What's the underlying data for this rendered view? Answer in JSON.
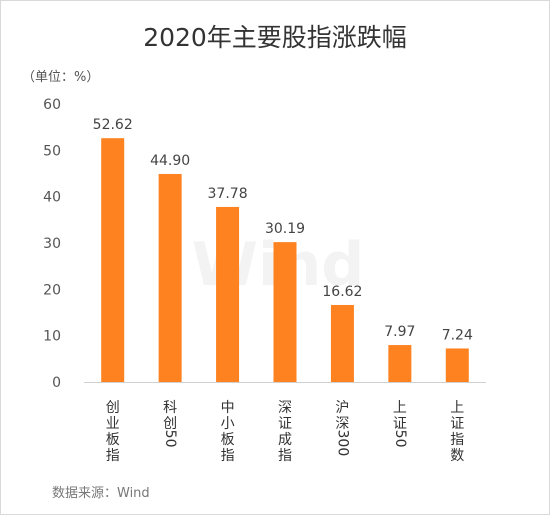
{
  "chart_data": {
    "type": "bar",
    "title": "2020年主要股指涨跌幅",
    "unit_label": "（单位：%）",
    "source": "数据来源：Wind",
    "watermark": "Wind",
    "categories": [
      "创业板指",
      "科创50",
      "中小板指",
      "深证成指",
      "沪深300",
      "上证50",
      "上证指数"
    ],
    "values": [
      52.62,
      44.9,
      37.78,
      30.19,
      16.62,
      7.97,
      7.24
    ],
    "value_labels": [
      "52.62",
      "44.90",
      "37.78",
      "30.19",
      "16.62",
      "7.97",
      "7.24"
    ],
    "ylim": [
      0,
      60
    ],
    "yticks": [
      0,
      10,
      20,
      30,
      40,
      50,
      60
    ],
    "bar_color": "#FF8220",
    "grid": false,
    "legend": "none"
  }
}
